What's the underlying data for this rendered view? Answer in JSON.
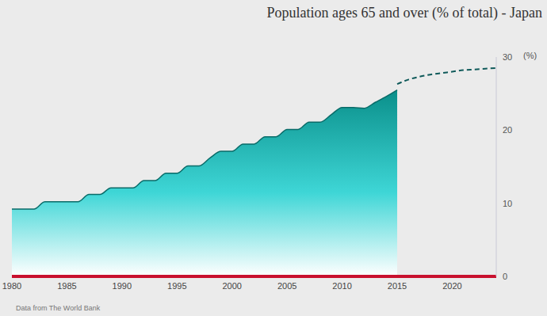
{
  "chart_data": {
    "type": "area",
    "title": "Population ages 65 and over (% of total) - Japan",
    "y_label": "(%)",
    "source": "Data from The World Bank",
    "x": [
      1980,
      1981,
      1982,
      1983,
      1984,
      1985,
      1986,
      1987,
      1988,
      1989,
      1990,
      1991,
      1992,
      1993,
      1994,
      1995,
      1996,
      1997,
      1998,
      1999,
      2000,
      2001,
      2002,
      2003,
      2004,
      2005,
      2006,
      2007,
      2008,
      2009,
      2010,
      2011,
      2012,
      2013,
      2014,
      2015,
      2016,
      2017,
      2018,
      2019,
      2020,
      2021,
      2022,
      2023,
      2024
    ],
    "series": [
      {
        "type": "area",
        "color": "#0a8f8a",
        "line_style": "solid",
        "values": [
          9.2,
          9.2,
          9.2,
          10.2,
          10.2,
          10.2,
          10.2,
          11.2,
          11.2,
          12.1,
          12.1,
          12.1,
          13.1,
          13.1,
          14.1,
          14.1,
          15.1,
          15.1,
          16.2,
          17.1,
          17.1,
          18.1,
          18.1,
          19.1,
          19.1,
          20.1,
          20.1,
          21.1,
          21.1,
          22.1,
          23.1,
          23.1,
          23.0,
          23.8,
          24.6,
          25.5,
          null,
          null,
          null,
          null,
          null,
          null,
          null,
          null,
          null
        ]
      },
      {
        "type": "line",
        "color": "#0f5a5a",
        "line_style": "dashed",
        "values": [
          null,
          null,
          null,
          null,
          null,
          null,
          null,
          null,
          null,
          null,
          null,
          null,
          null,
          null,
          null,
          null,
          null,
          null,
          null,
          null,
          null,
          null,
          null,
          null,
          null,
          null,
          null,
          null,
          null,
          null,
          null,
          null,
          null,
          null,
          null,
          26.3,
          26.9,
          27.3,
          27.6,
          27.8,
          28.0,
          28.2,
          28.3,
          28.4,
          28.5
        ]
      }
    ],
    "xlim": [
      1980,
      2024
    ],
    "xticks": [
      1980,
      1985,
      1990,
      1995,
      2000,
      2005,
      2010,
      2015,
      2020
    ],
    "ylim": [
      0,
      30
    ],
    "yticks": [
      0,
      10,
      20,
      30
    ],
    "grid": false
  }
}
